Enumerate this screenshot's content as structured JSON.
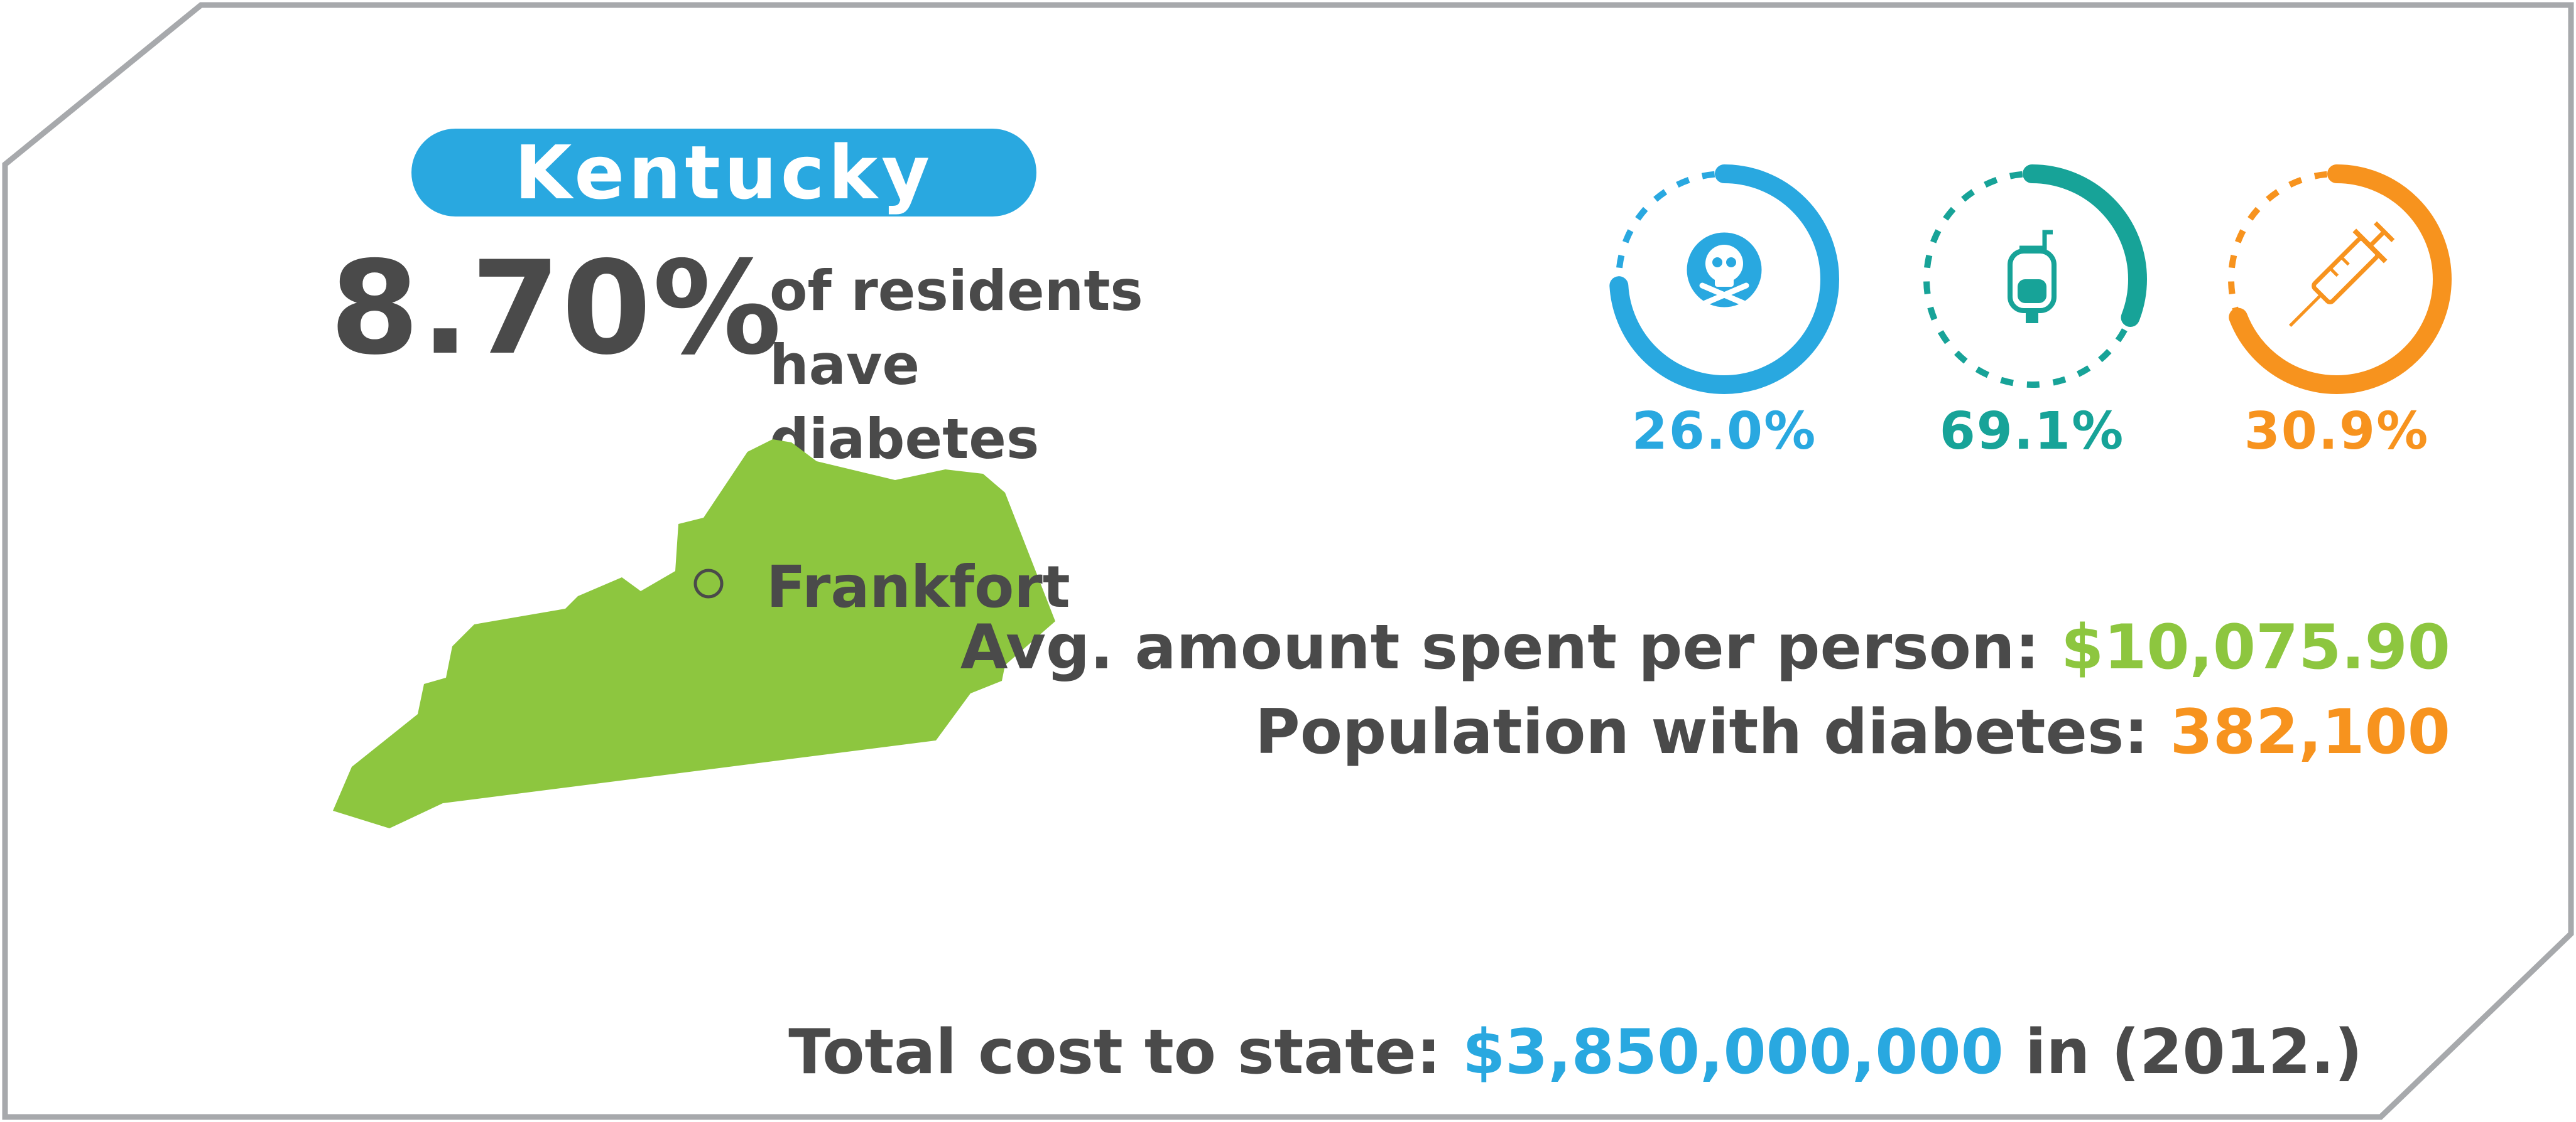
{
  "state_name": "Kentucky",
  "diabetes_rate": {
    "value": "8.70%",
    "label_line1": "of residents",
    "label_line2": "have diabetes"
  },
  "capital": "Frankfort",
  "rings": [
    {
      "icon": "skull-crossbones-icon",
      "value": "26.0%",
      "fraction": 0.26,
      "color": "#29a8e0"
    },
    {
      "icon": "iv-bag-icon",
      "value": "69.1%",
      "fraction": 0.691,
      "color": "#17a398"
    },
    {
      "icon": "syringe-icon",
      "value": "30.9%",
      "fraction": 0.309,
      "color": "#f7931e"
    }
  ],
  "avg_spent": {
    "label": "Avg. amount spent per person:",
    "value": "$10,075.90"
  },
  "population": {
    "label": "Population with diabetes:",
    "value": "382,100"
  },
  "total_cost": {
    "label": "Total cost to state:",
    "value": "$3,850,000,000",
    "suffix": "in (2012.)"
  },
  "colors": {
    "blue": "#29a8e0",
    "teal": "#17a398",
    "orange": "#f7931e",
    "green": "#8dc63f",
    "text": "#4a4a4a",
    "frame": "#a7a9ac"
  }
}
